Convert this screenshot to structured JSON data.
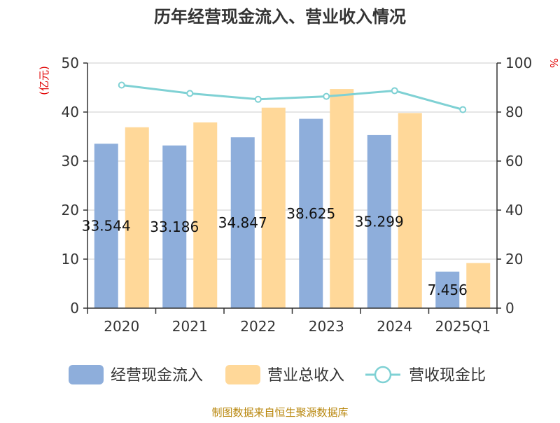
{
  "title": "历年经营现金流入、营业收入情况",
  "source": "制图数据来自恒生聚源数据库",
  "colors": {
    "cashflow": "#8eaedb",
    "revenue": "#ffd899",
    "ratio": "#7fd1d4",
    "unit": "#e00000",
    "source": "#b8860b"
  },
  "chart_data": {
    "type": "bar",
    "categories": [
      "2020",
      "2021",
      "2022",
      "2023",
      "2024",
      "2025Q1"
    ],
    "series": [
      {
        "name": "经营现金流入",
        "axis": "left",
        "values": [
          33.544,
          33.186,
          34.847,
          38.625,
          35.299,
          7.456
        ],
        "labels": [
          "33.544",
          "33.186",
          "34.847",
          "38.625",
          "35.299",
          "7.456"
        ]
      },
      {
        "name": "营业总收入",
        "axis": "left",
        "values": [
          36.9,
          37.9,
          40.9,
          44.7,
          39.8,
          9.2
        ]
      },
      {
        "name": "营收现金比",
        "axis": "right",
        "type": "line",
        "values": [
          91.0,
          87.6,
          85.2,
          86.4,
          88.7,
          81.0
        ]
      }
    ],
    "left_axis": {
      "unit": "(亿元)",
      "ylim": [
        0,
        50
      ],
      "ticks": [
        "0",
        "10",
        "20",
        "30",
        "40",
        "50"
      ]
    },
    "right_axis": {
      "unit": "%",
      "ylim": [
        0,
        100
      ],
      "ticks": [
        "0",
        "20",
        "40",
        "60",
        "80",
        "100"
      ]
    },
    "grid": true,
    "legend_position": "bottom"
  }
}
